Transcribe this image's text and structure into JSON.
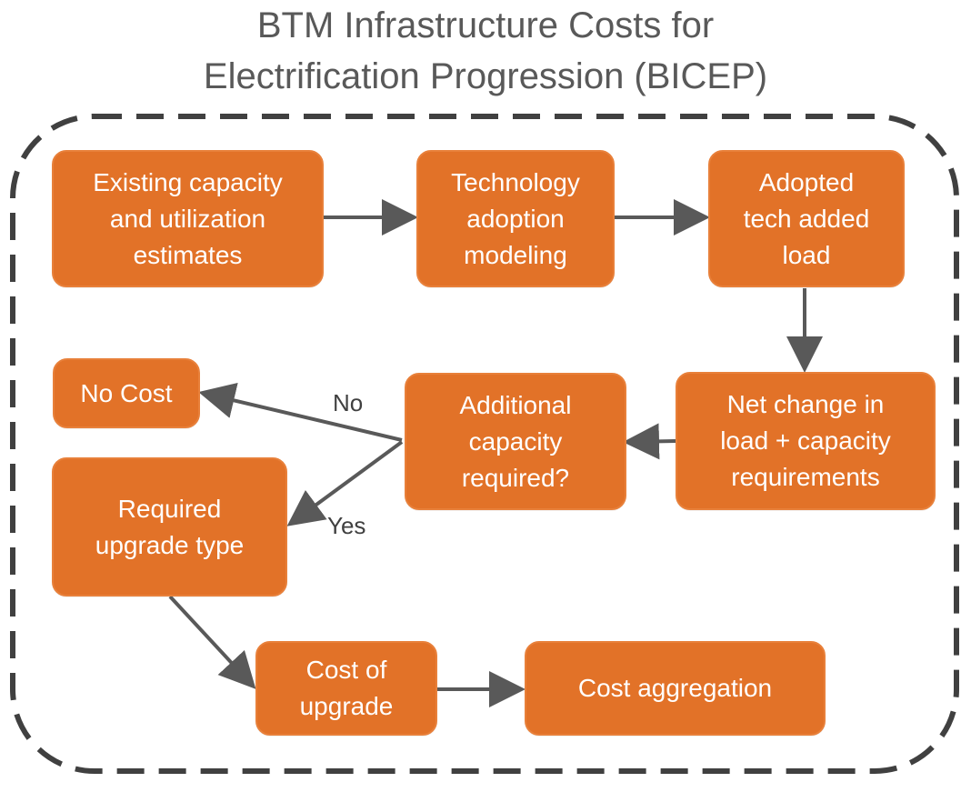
{
  "title": {
    "line1": "BTM Infrastructure Costs for",
    "line2": "Electrification Progression (BICEP)"
  },
  "colors": {
    "node_fill": "#e27228",
    "node_text": "#ffffff",
    "arrow": "#595959",
    "dashed_border": "#404040",
    "title_text": "#595959"
  },
  "nodes": {
    "existing": "Existing capacity\nand utilization\nestimates",
    "tech_adoption": "Technology\nadoption\nmodeling",
    "adopted_load": "Adopted\ntech added\nload",
    "net_change": "Net change in\nload + capacity\nrequirements",
    "additional_capacity": "Additional\ncapacity\nrequired?",
    "no_cost": "No Cost",
    "upgrade_type": "Required\nupgrade type",
    "cost_of_upgrade": "Cost of\nupgrade",
    "cost_aggregation": "Cost aggregation"
  },
  "edge_labels": {
    "no": "No",
    "yes": "Yes"
  }
}
